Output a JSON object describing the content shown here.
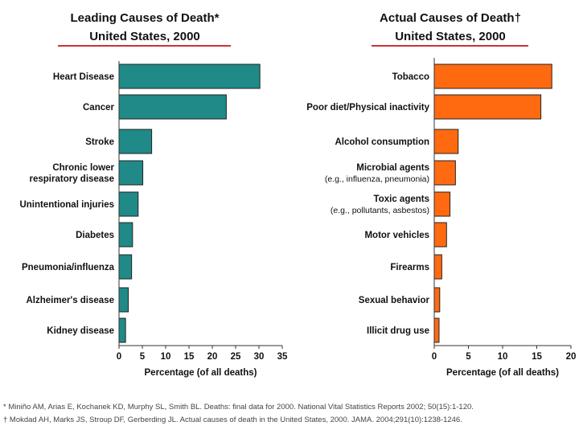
{
  "chart_data": [
    {
      "type": "bar",
      "orientation": "horizontal",
      "title": "Leading Causes of Death*",
      "subtitle": "United States, 2000",
      "categories": [
        [
          "Heart Disease"
        ],
        [
          "Cancer"
        ],
        [
          "Stroke"
        ],
        [
          "Chronic lower",
          "respiratory disease"
        ],
        [
          "Unintentional injuries"
        ],
        [
          "Diabetes"
        ],
        [
          "Pneumonia/influenza"
        ],
        [
          "Alzheimer's disease"
        ],
        [
          "Kidney disease"
        ]
      ],
      "values": [
        30.2,
        23.0,
        7.0,
        5.1,
        4.1,
        2.9,
        2.7,
        2.0,
        1.4
      ],
      "xlabel": "Percentage (of all deaths)",
      "xlim": [
        0,
        35
      ],
      "xticks": [
        "0",
        "5",
        "10",
        "15",
        "20",
        "25",
        "30",
        "35"
      ],
      "grid": false,
      "color": "#1f8a87"
    },
    {
      "type": "bar",
      "orientation": "horizontal",
      "title": "Actual Causes of Death†",
      "subtitle": "United States, 2000",
      "categories": [
        [
          "Tobacco"
        ],
        [
          "Poor diet/Physical inactivity"
        ],
        [
          "Alcohol consumption"
        ],
        [
          "Microbial agents",
          "(e.g., influenza, pneumonia)"
        ],
        [
          "Toxic agents",
          "(e.g., pollutants, asbestos)"
        ],
        [
          "Motor vehicles"
        ],
        [
          "Firearms"
        ],
        [
          "Sexual behavior"
        ],
        [
          "Illicit drug use"
        ]
      ],
      "values": [
        17.2,
        15.6,
        3.5,
        3.1,
        2.3,
        1.8,
        1.1,
        0.8,
        0.7
      ],
      "xlabel": "Percentage (of all deaths)",
      "xlim": [
        0,
        20
      ],
      "xticks": [
        "0",
        "5",
        "10",
        "15",
        "20"
      ],
      "grid": false,
      "color": "#ff6a10"
    }
  ],
  "footnotes": {
    "first": "* Miniño AM, Arias E, Kochanek KD, Murphy SL, Smith BL. Deaths: final data for 2000. National Vital Statistics Reports 2002; 50(15):1-120.",
    "second": "† Mokdad AH, Marks JS, Stroup DF, Gerberding JL.  Actual causes of death in the United States, 2000.  JAMA. 2004;291(10):1238-1246."
  }
}
